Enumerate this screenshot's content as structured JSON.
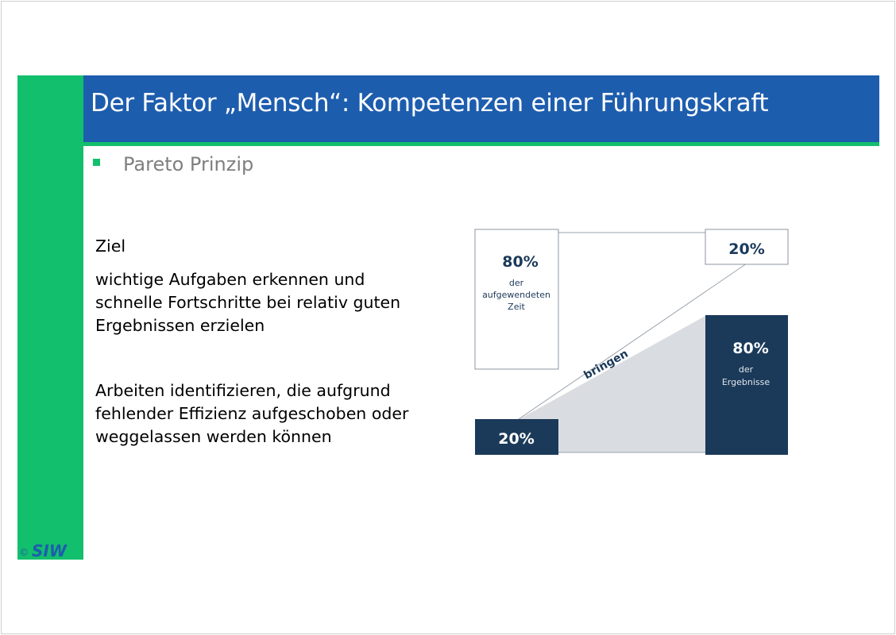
{
  "slide": {
    "title": "Der Faktor „Mensch“: Kompetenzen einer Führungskraft",
    "subtitle": "Pareto Prinzip",
    "goal_heading": "Ziel",
    "goal_lines": [
      "wichtige Aufgaben erkennen und",
      "schnelle Fortschritte bei relativ guten",
      "Ergebnissen erzielen"
    ],
    "secondary_lines": [
      "Arbeiten identifizieren, die aufgrund",
      "fehlender Effizienz aufgeschoben oder",
      "weggelassen werden können"
    ]
  },
  "diagram": {
    "time_percent": "80%",
    "time_label_1": "der",
    "time_label_2": "aufgewendeten",
    "time_label_3": "Zeit",
    "top_right_percent": "20%",
    "results_percent": "80%",
    "results_label_1": "der",
    "results_label_2": "Ergebnisse",
    "bottom_left_percent": "20%",
    "connector_label": "bringen"
  },
  "logo": {
    "copyright": "©",
    "text": "SIW"
  },
  "colors": {
    "title_bar": "#1d5dae",
    "accent_green": "#12bf6c",
    "dark_navy": "#1b3a5a",
    "subtitle_gray": "#7f7f7f"
  }
}
